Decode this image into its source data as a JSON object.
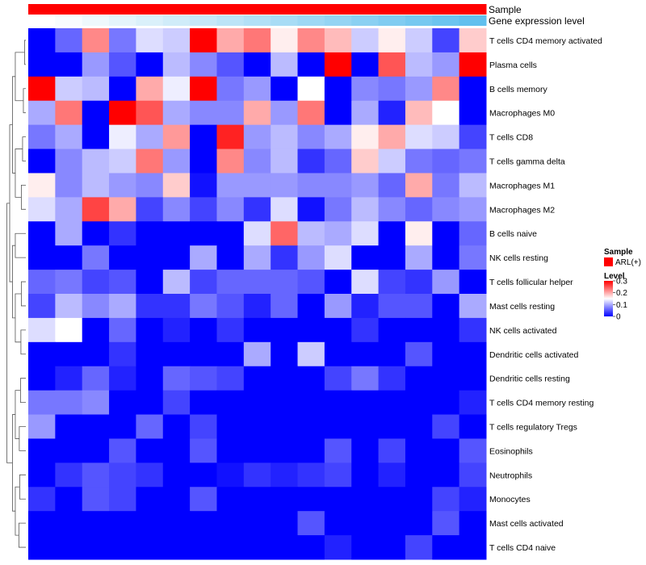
{
  "chart_data": {
    "type": "heatmap",
    "title": "",
    "annotations": [
      {
        "name": "Sample",
        "colors": [
          "#ff0000"
        ]
      },
      {
        "name": "Gene expression level",
        "colors": [
          "#ffffff",
          "#f8fcfe",
          "#eef8fc",
          "#e4f4fb",
          "#daf0fa",
          "#d0ecf9",
          "#c6e8f8",
          "#bce4f7",
          "#b2e0f6",
          "#a8dcf5",
          "#9ed8f4",
          "#94d4f3",
          "#8ad0f2",
          "#80ccf1",
          "#76c8f0",
          "#6cc4ef",
          "#62c0ee",
          "#5cbded"
        ]
      }
    ],
    "rows": [
      "T cells CD4 memory activated",
      "Plasma cells",
      "B cells memory",
      "Macrophages M0",
      "T cells CD8",
      "T cells gamma delta",
      "Macrophages M1",
      "Macrophages M2",
      "B cells naive",
      "NK cells resting",
      "T cells follicular helper",
      "Mast cells resting",
      "NK cells activated",
      "Dendritic cells activated",
      "Dendritic cells resting",
      "T cells CD4 memory resting",
      "T cells regulatory  Tregs",
      "Eosinophils",
      "Neutrophils",
      "Monocytes",
      "Mast cells activated",
      "T cells CD4 naive"
    ],
    "values": [
      [
        0.0,
        0.06,
        0.22,
        0.07,
        0.13,
        0.12,
        0.3,
        0.2,
        0.23,
        0.16,
        0.22,
        0.19,
        0.12,
        0.16,
        0.12,
        0.04,
        0.18
      ],
      [
        0.0,
        0.0,
        0.09,
        0.05,
        0.0,
        0.11,
        0.08,
        0.05,
        0.0,
        0.11,
        0.0,
        0.3,
        0.0,
        0.25,
        0.11,
        0.09,
        0.3
      ],
      [
        0.3,
        0.12,
        0.11,
        0.0,
        0.2,
        0.14,
        0.3,
        0.07,
        0.09,
        0.0,
        0.15,
        0.0,
        0.08,
        0.07,
        0.09,
        0.22,
        0.0
      ],
      [
        0.1,
        0.23,
        0.0,
        0.3,
        0.25,
        0.1,
        0.08,
        0.08,
        0.2,
        0.09,
        0.23,
        0.0,
        0.1,
        0.02,
        0.19,
        0.15,
        0.0
      ],
      [
        0.07,
        0.1,
        0.0,
        0.14,
        0.1,
        0.21,
        0.0,
        0.28,
        0.09,
        0.11,
        0.08,
        0.1,
        0.16,
        0.2,
        0.13,
        0.12,
        0.04
      ],
      [
        0.0,
        0.08,
        0.11,
        0.12,
        0.23,
        0.09,
        0.0,
        0.22,
        0.08,
        0.11,
        0.03,
        0.06,
        0.18,
        0.12,
        0.07,
        0.06,
        0.07
      ],
      [
        0.16,
        0.08,
        0.11,
        0.09,
        0.08,
        0.18,
        0.01,
        0.09,
        0.09,
        0.09,
        0.08,
        0.08,
        0.09,
        0.06,
        0.2,
        0.07,
        0.11
      ],
      [
        0.13,
        0.1,
        0.26,
        0.2,
        0.04,
        0.08,
        0.04,
        0.08,
        0.03,
        0.13,
        0.01,
        0.07,
        0.11,
        0.08,
        0.06,
        0.08,
        0.09
      ],
      [
        0.0,
        0.1,
        0.0,
        0.03,
        0.0,
        0.0,
        0.0,
        0.0,
        0.13,
        0.24,
        0.11,
        0.1,
        0.13,
        0.0,
        0.16,
        0.0,
        0.06
      ],
      [
        0.0,
        0.0,
        0.07,
        0.0,
        0.0,
        0.0,
        0.1,
        0.0,
        0.1,
        0.03,
        0.09,
        0.13,
        0.0,
        0.0,
        0.1,
        0.0,
        0.07
      ],
      [
        0.06,
        0.07,
        0.04,
        0.05,
        0.0,
        0.11,
        0.04,
        0.06,
        0.06,
        0.06,
        0.05,
        0.0,
        0.13,
        0.04,
        0.03,
        0.09,
        0.0
      ],
      [
        0.04,
        0.11,
        0.08,
        0.1,
        0.03,
        0.03,
        0.07,
        0.05,
        0.02,
        0.06,
        0.0,
        0.09,
        0.02,
        0.05,
        0.05,
        0.0,
        0.1
      ],
      [
        0.13,
        0.15,
        0.0,
        0.06,
        0.0,
        0.02,
        0.0,
        0.03,
        0.0,
        0.0,
        0.0,
        0.0,
        0.03,
        0.0,
        0.0,
        0.0,
        0.03
      ],
      [
        0.0,
        0.0,
        0.0,
        0.03,
        0.0,
        0.0,
        0.0,
        0.0,
        0.1,
        0.0,
        0.12,
        0.0,
        0.0,
        0.0,
        0.05,
        0.0,
        0.0
      ],
      [
        0.0,
        0.02,
        0.06,
        0.02,
        0.0,
        0.06,
        0.05,
        0.04,
        0.0,
        0.0,
        0.0,
        0.04,
        0.07,
        0.03,
        0.0,
        0.0,
        0.0
      ],
      [
        0.07,
        0.07,
        0.08,
        0.0,
        0.0,
        0.04,
        0.0,
        0.0,
        0.0,
        0.0,
        0.0,
        0.0,
        0.0,
        0.0,
        0.0,
        0.0,
        0.02
      ],
      [
        0.09,
        0.0,
        0.0,
        0.0,
        0.06,
        0.0,
        0.04,
        0.0,
        0.0,
        0.0,
        0.0,
        0.0,
        0.0,
        0.0,
        0.0,
        0.04,
        0.0
      ],
      [
        0.0,
        0.0,
        0.0,
        0.05,
        0.0,
        0.0,
        0.05,
        0.0,
        0.0,
        0.0,
        0.0,
        0.05,
        0.0,
        0.04,
        0.0,
        0.0,
        0.05
      ],
      [
        0.0,
        0.03,
        0.05,
        0.04,
        0.03,
        0.0,
        0.0,
        0.01,
        0.03,
        0.02,
        0.03,
        0.04,
        0.0,
        0.02,
        0.0,
        0.0,
        0.04
      ],
      [
        0.03,
        0.0,
        0.05,
        0.04,
        0.0,
        0.0,
        0.05,
        0.0,
        0.0,
        0.0,
        0.0,
        0.0,
        0.0,
        0.0,
        0.0,
        0.04,
        0.02
      ],
      [
        0.0,
        0.0,
        0.0,
        0.0,
        0.0,
        0.0,
        0.0,
        0.0,
        0.0,
        0.0,
        0.05,
        0.0,
        0.0,
        0.0,
        0.0,
        0.05,
        0.0
      ],
      [
        0.0,
        0.0,
        0.0,
        0.0,
        0.0,
        0.0,
        0.0,
        0.0,
        0.0,
        0.0,
        0.0,
        0.02,
        0.0,
        0.0,
        0.04,
        0.0,
        0.0
      ]
    ],
    "color_scale": {
      "min": 0,
      "mid": 0.15,
      "max": 0.3,
      "low": "#0000ff",
      "mid_color": "#ffffff",
      "high": "#ff0000"
    },
    "dendrogram": {
      "leaves_order": "rows",
      "merges": [
        [
          0,
          1,
          0.15
        ],
        [
          2,
          3,
          0.3
        ],
        [
          4,
          5,
          0.4
        ],
        [
          6,
          7,
          0.55
        ],
        [
          10,
          11,
          0.55
        ],
        [
          12,
          13,
          0.6
        ],
        [
          14,
          15,
          0.65
        ],
        [
          16,
          17,
          0.8
        ],
        [
          18,
          19,
          0.75
        ],
        [
          20,
          21,
          0.85
        ]
      ]
    },
    "legend": {
      "sample_title": "Sample",
      "sample_entries": [
        {
          "label": "ARL(+)",
          "color": "#ff0000"
        }
      ],
      "level_title": "Level",
      "level_ticks": [
        "0.3",
        "0.2",
        "0.1",
        "0"
      ],
      "level_tick_values": [
        0.3,
        0.2,
        0.1,
        0
      ],
      "position": "right"
    }
  }
}
